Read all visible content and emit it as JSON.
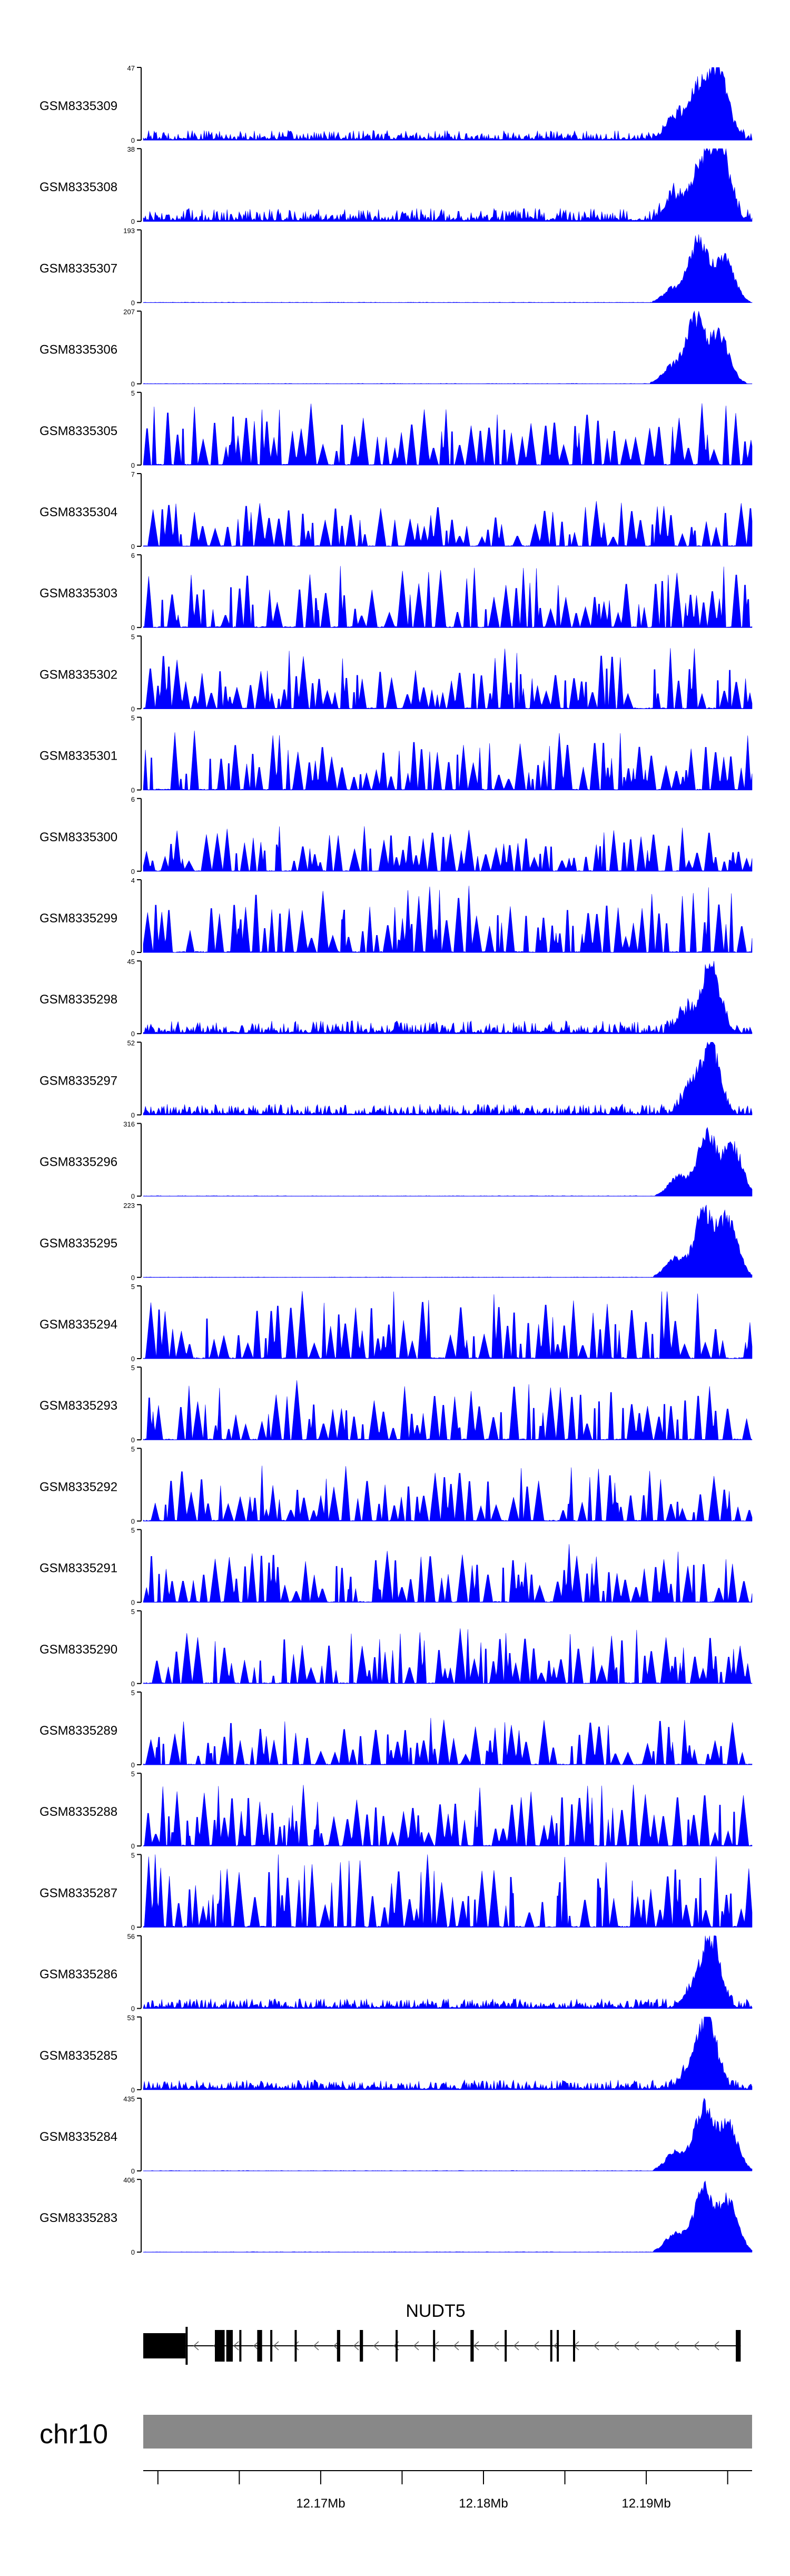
{
  "colors": {
    "signal": "#0000ff",
    "axis": "#000000",
    "gene": "#000000",
    "ideogram": "#888888",
    "background": "#ffffff"
  },
  "chart_data": {
    "type": "area",
    "x_unit": "Mb",
    "xlim": [
      12.1591,
      12.1965
    ],
    "x_ticks": [
      12.16,
      12.165,
      12.17,
      12.175,
      12.18,
      12.185,
      12.19,
      12.195
    ],
    "x_tick_labels": [
      {
        "value": 12.17,
        "label": "12.17Mb"
      },
      {
        "value": 12.18,
        "label": "12.18Mb"
      },
      {
        "value": 12.19,
        "label": "12.19Mb"
      }
    ],
    "chromosome": "chr10",
    "gene": {
      "name": "NUDT5",
      "strand": "-",
      "start": 12.1591,
      "end": 12.1958,
      "exons": [
        [
          12.1591,
          12.1617
        ],
        [
          12.1635,
          12.1641
        ],
        [
          12.1642,
          12.1646
        ],
        [
          12.165,
          12.1651
        ],
        [
          12.1661,
          12.1664
        ],
        [
          12.1669,
          12.167
        ],
        [
          12.1684,
          12.1685
        ],
        [
          12.171,
          12.1712
        ],
        [
          12.1724,
          12.1726
        ],
        [
          12.1746,
          12.1747
        ],
        [
          12.1769,
          12.177
        ],
        [
          12.1792,
          12.1794
        ],
        [
          12.1813,
          12.1814
        ],
        [
          12.1841,
          12.1842
        ],
        [
          12.1845,
          12.1846
        ],
        [
          12.1855,
          12.1856
        ],
        [
          12.1955,
          12.1958
        ]
      ]
    },
    "tracks": [
      {
        "name": "GSM8335309",
        "ymax": 47,
        "profile": "peak",
        "bg": 0.09,
        "peaks": [
          [
            12.1945,
            0.95
          ],
          [
            12.1933,
            0.72
          ],
          [
            12.1918,
            0.32
          ]
        ]
      },
      {
        "name": "GSM8335308",
        "ymax": 38,
        "profile": "peak",
        "bg": 0.12,
        "peaks": [
          [
            12.1946,
            0.96
          ],
          [
            12.1934,
            0.78
          ],
          [
            12.1918,
            0.35
          ]
        ]
      },
      {
        "name": "GSM8335307",
        "ymax": 193,
        "profile": "peak",
        "bg": 0.004,
        "peaks": [
          [
            12.1932,
            0.95
          ],
          [
            12.1948,
            0.66
          ],
          [
            12.1917,
            0.22
          ]
        ]
      },
      {
        "name": "GSM8335306",
        "ymax": 207,
        "profile": "peak",
        "bg": 0.004,
        "peaks": [
          [
            12.193,
            0.95
          ],
          [
            12.1945,
            0.72
          ],
          [
            12.1916,
            0.25
          ]
        ]
      },
      {
        "name": "GSM8335305",
        "ymax": 5,
        "profile": "noise",
        "bg": 0.5
      },
      {
        "name": "GSM8335304",
        "ymax": 7,
        "profile": "noise",
        "bg": 0.38
      },
      {
        "name": "GSM8335303",
        "ymax": 6,
        "profile": "noise",
        "bg": 0.5
      },
      {
        "name": "GSM8335302",
        "ymax": 5,
        "profile": "noise",
        "bg": 0.5
      },
      {
        "name": "GSM8335301",
        "ymax": 5,
        "profile": "noise",
        "bg": 0.48
      },
      {
        "name": "GSM8335300",
        "ymax": 6,
        "profile": "noise",
        "bg": 0.38
      },
      {
        "name": "GSM8335299",
        "ymax": 4,
        "profile": "noise",
        "bg": 0.55
      },
      {
        "name": "GSM8335298",
        "ymax": 45,
        "profile": "peak",
        "bg": 0.12,
        "peaks": [
          [
            12.194,
            0.95
          ],
          [
            12.1925,
            0.3
          ]
        ]
      },
      {
        "name": "GSM8335297",
        "ymax": 52,
        "profile": "peak",
        "bg": 0.1,
        "peaks": [
          [
            12.194,
            0.95
          ],
          [
            12.1928,
            0.35
          ]
        ]
      },
      {
        "name": "GSM8335296",
        "ymax": 316,
        "profile": "peak",
        "bg": 0.004,
        "peaks": [
          [
            12.1937,
            0.95
          ],
          [
            12.1953,
            0.75
          ],
          [
            12.192,
            0.3
          ]
        ]
      },
      {
        "name": "GSM8335295",
        "ymax": 223,
        "profile": "peak",
        "bg": 0.004,
        "peaks": [
          [
            12.1935,
            0.95
          ],
          [
            12.195,
            0.88
          ],
          [
            12.1918,
            0.28
          ]
        ]
      },
      {
        "name": "GSM8335294",
        "ymax": 5,
        "profile": "noise",
        "bg": 0.55
      },
      {
        "name": "GSM8335293",
        "ymax": 5,
        "profile": "noise",
        "bg": 0.5
      },
      {
        "name": "GSM8335292",
        "ymax": 5,
        "profile": "noise",
        "bg": 0.45
      },
      {
        "name": "GSM8335291",
        "ymax": 5,
        "profile": "noise",
        "bg": 0.48
      },
      {
        "name": "GSM8335290",
        "ymax": 5,
        "profile": "noise",
        "bg": 0.45
      },
      {
        "name": "GSM8335289",
        "ymax": 5,
        "profile": "noise",
        "bg": 0.42
      },
      {
        "name": "GSM8335288",
        "ymax": 5,
        "profile": "noise",
        "bg": 0.5
      },
      {
        "name": "GSM8335287",
        "ymax": 5,
        "profile": "noise",
        "bg": 0.62
      },
      {
        "name": "GSM8335286",
        "ymax": 56,
        "profile": "peak",
        "bg": 0.09,
        "peaks": [
          [
            12.194,
            0.95
          ],
          [
            12.193,
            0.3
          ]
        ]
      },
      {
        "name": "GSM8335285",
        "ymax": 53,
        "profile": "peak",
        "bg": 0.09,
        "peaks": [
          [
            12.1938,
            0.95
          ],
          [
            12.1928,
            0.3
          ]
        ]
      },
      {
        "name": "GSM8335284",
        "ymax": 435,
        "profile": "peak",
        "bg": 0.004,
        "peaks": [
          [
            12.1935,
            0.95
          ],
          [
            12.195,
            0.7
          ],
          [
            12.1918,
            0.28
          ]
        ]
      },
      {
        "name": "GSM8335283",
        "ymax": 406,
        "profile": "peak",
        "bg": 0.004,
        "peaks": [
          [
            12.1935,
            0.95
          ],
          [
            12.195,
            0.78
          ],
          [
            12.1918,
            0.28
          ]
        ]
      }
    ]
  }
}
